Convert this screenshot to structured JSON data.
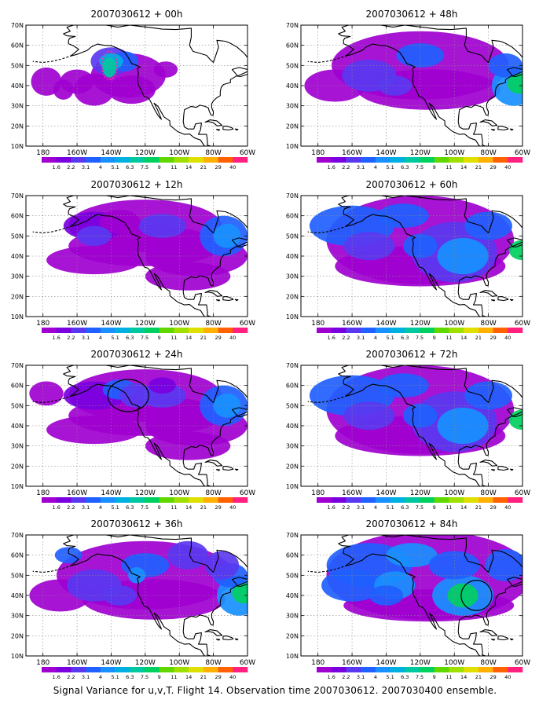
{
  "caption": "Signal Variance for u,v,T. Flight 14. Observation time 2007030612. 2007030400 ensemble.",
  "latitude_labels": [
    "70N",
    "60N",
    "50N",
    "40N",
    "30N",
    "20N",
    "10N"
  ],
  "longitude_labels": [
    "180",
    "160W",
    "140W",
    "120W",
    "100W",
    "80W",
    "60W"
  ],
  "colorbar": {
    "labels": [
      "1.6",
      "2.2",
      "3.1",
      "4",
      "5.1",
      "6.3",
      "7.5",
      "9",
      "11",
      "14",
      "21",
      "29",
      "40"
    ],
    "colors": [
      "#a000d0",
      "#7a00e0",
      "#5a38f0",
      "#2060ff",
      "#1890ff",
      "#00b0e0",
      "#00c8a0",
      "#00d060",
      "#60d800",
      "#a0e000",
      "#e0e000",
      "#ffb000",
      "#ff6000",
      "#ff2080"
    ]
  },
  "panels": [
    {
      "title": "2007030612 + 00h",
      "level": 0
    },
    {
      "title": "2007030612 + 48h",
      "level": 2
    },
    {
      "title": "2007030612 + 12h",
      "level": 1
    },
    {
      "title": "2007030612 + 60h",
      "level": 3
    },
    {
      "title": "2007030612 + 24h",
      "level": 1
    },
    {
      "title": "2007030612 + 72h",
      "level": 3
    },
    {
      "title": "2007030612 + 36h",
      "level": 2
    },
    {
      "title": "2007030612 + 84h",
      "level": 4
    }
  ]
}
